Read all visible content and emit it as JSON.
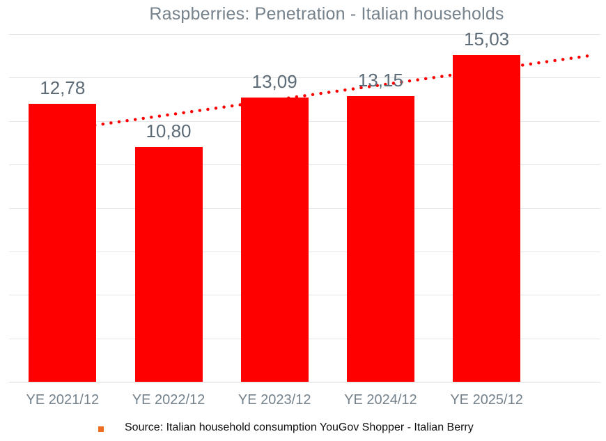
{
  "chart_data": {
    "type": "bar",
    "title": "Raspberries: Penetration - Italian households",
    "categories": [
      "YE 2021/12",
      "YE 2022/12",
      "YE 2023/12",
      "YE 2024/12",
      "YE 2025/12"
    ],
    "values": [
      12.78,
      10.8,
      13.09,
      13.15,
      15.03
    ],
    "value_labels": [
      "12,78",
      "10,80",
      "13,09",
      "13,15",
      "15,03"
    ],
    "xlabel": "",
    "ylabel": "",
    "ylim": [
      0,
      16
    ],
    "grid_step": 2,
    "grid": true,
    "y_tick_labels_visible": false,
    "legend": "none",
    "bar_color": "#FF0000",
    "title_color": "#76828C",
    "value_label_color": "#5D6B76",
    "axis_label_color": "#75828C",
    "gridline_color": "#E3E5E7",
    "baseline_color": "#D8DADC",
    "trendline": {
      "type": "linear",
      "style": "dotted",
      "color": "#FF0000",
      "forward_forecast_periods": 1,
      "start": {
        "category_index": 0,
        "value": 11.6
      },
      "end": {
        "category_index": 5,
        "value": 15.03
      }
    }
  },
  "footer": {
    "bullet_color": "#EE6D1E",
    "text_color": "#111111",
    "source_text": "Source: Italian household consumption YouGov Shopper - Italian Berry"
  }
}
